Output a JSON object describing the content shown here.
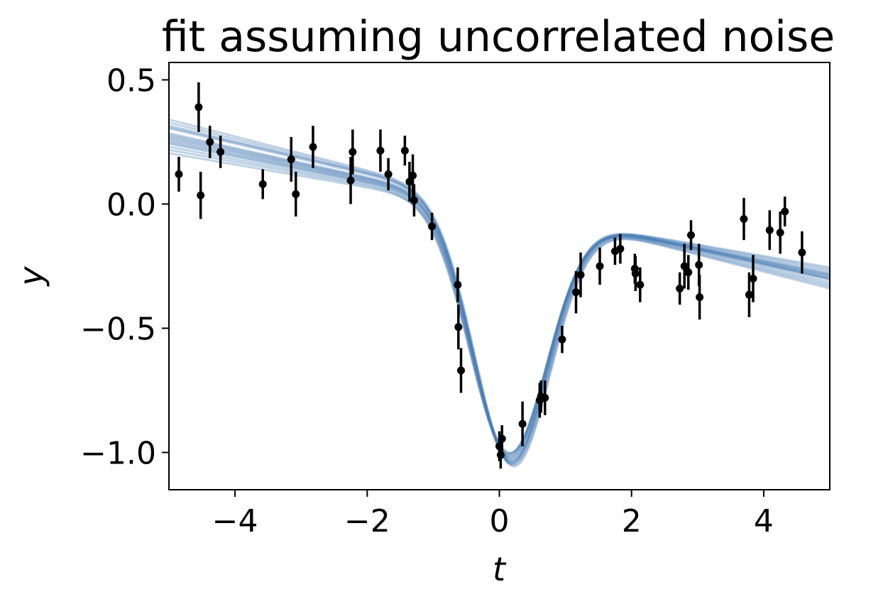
{
  "chart_data": {
    "type": "scatter",
    "title": "fit assuming uncorrelated noise",
    "xlabel": "t",
    "ylabel": "y",
    "xlim": [
      -5,
      5
    ],
    "ylim": [
      -1.15,
      0.57
    ],
    "xticks": [
      -4,
      -2,
      0,
      2,
      4
    ],
    "xtick_labels": [
      "−4",
      "−2",
      "0",
      "2",
      "4"
    ],
    "yticks": [
      0.5,
      0.0,
      -0.5,
      -1.0
    ],
    "ytick_labels": [
      "0.5",
      "0.0",
      "−0.5",
      "−1.0"
    ],
    "grid": false,
    "legend": "none",
    "colors": {
      "fit_lines": "#4a7fb5",
      "points": "#000000"
    },
    "fit_lines": {
      "model": "y = m*t + b + A*exp(-(t - t0)^2 / (2*s^2))",
      "count": 16,
      "params": [
        {
          "m": -0.055,
          "b": -0.014,
          "A": -0.999,
          "t0": 0.15,
          "s": 0.56
        },
        {
          "m": -0.056,
          "b": -0.013,
          "A": -1.004,
          "t0": 0.16,
          "s": 0.57
        },
        {
          "m": -0.057,
          "b": -0.012,
          "A": -1.009,
          "t0": 0.17,
          "s": 0.575
        },
        {
          "m": -0.054,
          "b": -0.016,
          "A": -0.994,
          "t0": 0.15,
          "s": 0.565
        },
        {
          "m": -0.053,
          "b": -0.017,
          "A": -0.989,
          "t0": 0.14,
          "s": 0.57
        },
        {
          "m": -0.058,
          "b": -0.011,
          "A": -1.014,
          "t0": 0.16,
          "s": 0.56
        },
        {
          "m": -0.052,
          "b": -0.018,
          "A": -0.984,
          "t0": 0.14,
          "s": 0.575
        },
        {
          "m": -0.059,
          "b": -0.01,
          "A": -1.019,
          "t0": 0.18,
          "s": 0.565
        },
        {
          "m": -0.05,
          "b": -0.02,
          "A": -0.979,
          "t0": 0.13,
          "s": 0.58
        },
        {
          "m": -0.062,
          "b": -0.005,
          "A": -1.024,
          "t0": 0.17,
          "s": 0.56
        },
        {
          "m": -0.048,
          "b": -0.022,
          "A": -0.974,
          "t0": 0.14,
          "s": 0.585
        },
        {
          "m": -0.064,
          "b": -0.004,
          "A": -1.031,
          "t0": 0.18,
          "s": 0.57
        },
        {
          "m": -0.046,
          "b": -0.025,
          "A": -0.97,
          "t0": 0.15,
          "s": 0.57
        },
        {
          "m": -0.066,
          "b": -0.002,
          "A": -1.035,
          "t0": 0.19,
          "s": 0.575
        },
        {
          "m": -0.061,
          "b": 0.004,
          "A": -1.039,
          "t0": 0.16,
          "s": 0.56
        },
        {
          "m": -0.068,
          "b": 0.0,
          "A": -1.042,
          "t0": 0.2,
          "s": 0.57
        }
      ]
    },
    "points": [
      {
        "x": -4.85,
        "y": 0.12,
        "err": 0.07
      },
      {
        "x": -4.55,
        "y": 0.39,
        "err": 0.1
      },
      {
        "x": -4.52,
        "y": 0.035,
        "err": 0.095
      },
      {
        "x": -4.38,
        "y": 0.25,
        "err": 0.065
      },
      {
        "x": -4.22,
        "y": 0.21,
        "err": 0.065
      },
      {
        "x": -3.58,
        "y": 0.08,
        "err": 0.06
      },
      {
        "x": -3.15,
        "y": 0.18,
        "err": 0.09
      },
      {
        "x": -3.08,
        "y": 0.04,
        "err": 0.09
      },
      {
        "x": -2.82,
        "y": 0.23,
        "err": 0.085
      },
      {
        "x": -2.25,
        "y": 0.095,
        "err": 0.095
      },
      {
        "x": -2.22,
        "y": 0.21,
        "err": 0.09
      },
      {
        "x": -1.8,
        "y": 0.215,
        "err": 0.085
      },
      {
        "x": -1.68,
        "y": 0.12,
        "err": 0.065
      },
      {
        "x": -1.43,
        "y": 0.215,
        "err": 0.06
      },
      {
        "x": -1.36,
        "y": 0.09,
        "err": 0.08
      },
      {
        "x": -1.31,
        "y": 0.115,
        "err": 0.085
      },
      {
        "x": -1.29,
        "y": 0.015,
        "err": 0.065
      },
      {
        "x": -1.02,
        "y": -0.09,
        "err": 0.055
      },
      {
        "x": -0.63,
        "y": -0.325,
        "err": 0.07
      },
      {
        "x": -0.62,
        "y": -0.495,
        "err": 0.09
      },
      {
        "x": -0.58,
        "y": -0.67,
        "err": 0.09
      },
      {
        "x": 0.0,
        "y": -0.975,
        "err": 0.06
      },
      {
        "x": 0.02,
        "y": -1.01,
        "err": 0.055
      },
      {
        "x": 0.04,
        "y": -0.945,
        "err": 0.055
      },
      {
        "x": 0.35,
        "y": -0.885,
        "err": 0.09
      },
      {
        "x": 0.61,
        "y": -0.79,
        "err": 0.07
      },
      {
        "x": 0.63,
        "y": -0.775,
        "err": 0.065
      },
      {
        "x": 0.69,
        "y": -0.78,
        "err": 0.07
      },
      {
        "x": 0.95,
        "y": -0.545,
        "err": 0.055
      },
      {
        "x": 1.16,
        "y": -0.355,
        "err": 0.085
      },
      {
        "x": 1.23,
        "y": -0.285,
        "err": 0.09
      },
      {
        "x": 1.52,
        "y": -0.25,
        "err": 0.075
      },
      {
        "x": 1.75,
        "y": -0.19,
        "err": 0.055
      },
      {
        "x": 1.83,
        "y": -0.18,
        "err": 0.06
      },
      {
        "x": 2.05,
        "y": -0.26,
        "err": 0.06
      },
      {
        "x": 2.06,
        "y": -0.28,
        "err": 0.07
      },
      {
        "x": 2.13,
        "y": -0.325,
        "err": 0.07
      },
      {
        "x": 2.73,
        "y": -0.34,
        "err": 0.065
      },
      {
        "x": 2.8,
        "y": -0.25,
        "err": 0.09
      },
      {
        "x": 2.86,
        "y": -0.275,
        "err": 0.07
      },
      {
        "x": 2.9,
        "y": -0.125,
        "err": 0.06
      },
      {
        "x": 3.02,
        "y": -0.245,
        "err": 0.085
      },
      {
        "x": 3.03,
        "y": -0.375,
        "err": 0.09
      },
      {
        "x": 3.7,
        "y": -0.06,
        "err": 0.085
      },
      {
        "x": 3.78,
        "y": -0.365,
        "err": 0.09
      },
      {
        "x": 3.84,
        "y": -0.3,
        "err": 0.095
      },
      {
        "x": 4.09,
        "y": -0.105,
        "err": 0.08
      },
      {
        "x": 4.25,
        "y": -0.115,
        "err": 0.085
      },
      {
        "x": 4.32,
        "y": -0.03,
        "err": 0.06
      },
      {
        "x": 4.58,
        "y": -0.195,
        "err": 0.085
      }
    ]
  }
}
